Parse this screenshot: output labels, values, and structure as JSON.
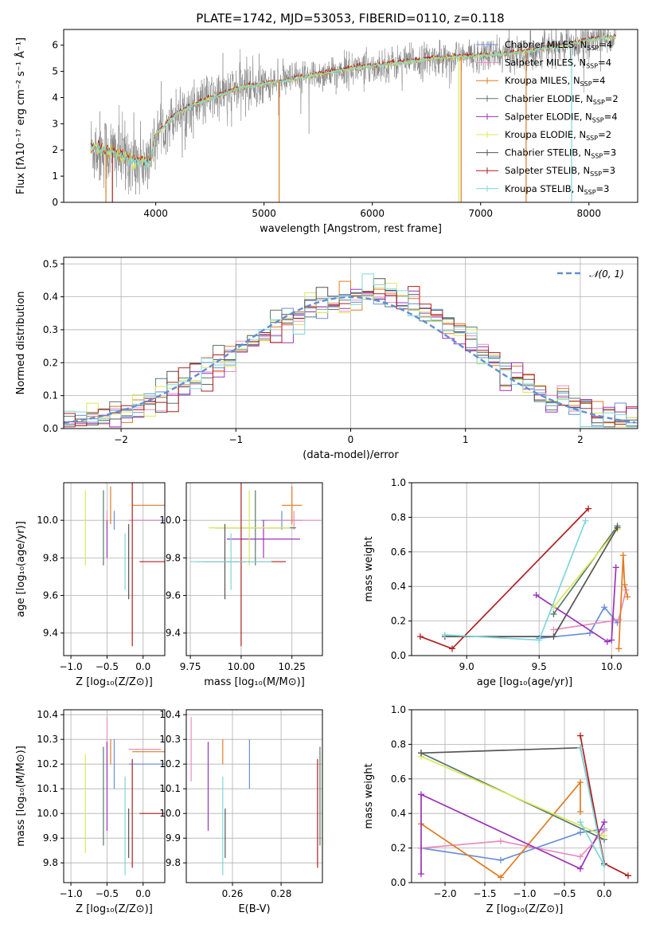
{
  "figure_title": "PLATE=1742, MJD=53053, FIBERID=0110, z=0.118",
  "colors": {
    "Chabrier MILES": "#6a8fd8",
    "Salpeter MILES": "#e98fbd",
    "Kroupa MILES": "#e07b22",
    "Chabrier ELODIE": "#5b7a6a",
    "Salpeter ELODIE": "#9b33b8",
    "Kroupa ELODIE": "#d9e85a",
    "Chabrier STELIB": "#555555",
    "Salpeter STELIB": "#b01e1e",
    "Kroupa STELIB": "#7fd6da",
    "data_spectrum": "#808080",
    "normal_curve": "#5e8fd6",
    "grid": "#b0b0b0"
  },
  "chart_data": [
    {
      "id": "spectrum",
      "type": "line",
      "title": "PLATE=1742, MJD=53053, FIBERID=0110, z=0.118",
      "xlabel": "wavelength [Angstrom, rest frame]",
      "ylabel": "Flux [fλ10⁻¹⁷ erg cm⁻² s⁻¹ Å⁻¹]",
      "xlim": [
        3150,
        8450
      ],
      "ylim": [
        0,
        6.6
      ],
      "xticks": [
        4000,
        5000,
        6000,
        7000,
        8000
      ],
      "yticks": [
        0,
        1,
        2,
        3,
        4,
        5,
        6
      ],
      "grid": false,
      "legend_position": "upper-right",
      "legend": [
        "Chabrier MILES, NSSP=4",
        "Salpeter MILES, NSSP=4",
        "Kroupa MILES, NSSP=4",
        "Chabrier ELODIE, NSSP=2",
        "Salpeter ELODIE, NSSP=4",
        "Kroupa ELODIE, NSSP=2",
        "Chabrier STELIB, NSSP=3",
        "Salpeter STELIB, NSSP=3",
        "Kroupa STELIB, NSSP=3"
      ],
      "continuum": {
        "x": [
          3400,
          3600,
          3800,
          3950,
          4000,
          4200,
          4400,
          4600,
          4800,
          5000,
          5200,
          5400,
          5600,
          5800,
          6000,
          6200,
          6400,
          6600,
          6800,
          7000,
          7200,
          7400,
          7600,
          7800,
          8000,
          8200
        ],
        "y": [
          2.1,
          1.9,
          1.6,
          1.5,
          2.6,
          3.4,
          3.8,
          4.1,
          4.4,
          4.5,
          4.65,
          4.8,
          4.95,
          5.1,
          5.2,
          5.3,
          5.4,
          5.5,
          5.55,
          5.6,
          5.65,
          5.75,
          5.9,
          6.0,
          6.2,
          6.3
        ]
      }
    },
    {
      "id": "residuals",
      "type": "histogram",
      "xlabel": "(data-model)/error",
      "ylabel": "Normed distribution",
      "xlim": [
        -2.5,
        2.5
      ],
      "ylim": [
        0,
        0.52
      ],
      "xticks": [
        -2,
        -1,
        0,
        1,
        2
      ],
      "yticks": [
        0.0,
        0.1,
        0.2,
        0.3,
        0.4,
        0.5
      ],
      "grid": true,
      "legend": [
        "𝒩(0, 1)"
      ],
      "legend_position": "upper-right",
      "normal": {
        "mean": 0,
        "sigma": 1
      }
    },
    {
      "id": "age-vs-Z",
      "type": "errorbar",
      "xlabel": "Z [log₁₀(Z/Z⊙)]",
      "ylabel": "age  [log₁₀(age/yr)]",
      "xlim": [
        -1.1,
        0.3
      ],
      "ylim": [
        9.28,
        10.2
      ],
      "xticks": [
        -1.0,
        -0.5,
        0.0
      ],
      "yticks": [
        9.4,
        9.6,
        9.8,
        10.0
      ],
      "grid": true
    },
    {
      "id": "age-vs-mass",
      "type": "errorbar",
      "xlabel": "mass [log₁₀(M/M⊙)]",
      "xlim": [
        9.73,
        10.4
      ],
      "ylim": [
        9.28,
        10.2
      ],
      "xticks": [
        9.75,
        10.0,
        10.25
      ],
      "yticks": [
        9.4,
        9.6,
        9.8,
        10.0
      ],
      "grid": true
    },
    {
      "id": "weight-vs-age",
      "type": "line",
      "xlabel": "age  [log₁₀(age/yr)]",
      "ylabel": "mass weight",
      "xlim": [
        8.62,
        10.18
      ],
      "ylim": [
        0,
        1
      ],
      "xticks": [
        9.0,
        9.5,
        10.0
      ],
      "yticks": [
        0.0,
        0.2,
        0.4,
        0.6,
        0.8,
        1.0
      ],
      "grid": true
    },
    {
      "id": "mass-vs-Z",
      "type": "errorbar",
      "xlabel": "Z [log₁₀(Z/Z⊙)]",
      "ylabel": "mass [log₁₀(M/M⊙)]",
      "xlim": [
        -1.1,
        0.3
      ],
      "ylim": [
        9.72,
        10.42
      ],
      "xticks": [
        -1.0,
        -0.5,
        0.0
      ],
      "yticks": [
        9.8,
        9.9,
        10.0,
        10.1,
        10.2,
        10.3,
        10.4
      ],
      "grid": true
    },
    {
      "id": "mass-vs-EBV",
      "type": "errorbar",
      "xlabel": "E(B-V)",
      "xlim": [
        0.241,
        0.297
      ],
      "ylim": [
        9.72,
        10.42
      ],
      "xticks": [
        0.26,
        0.28
      ],
      "yticks": [
        9.8,
        9.9,
        10.0,
        10.1,
        10.2,
        10.3,
        10.4
      ],
      "grid": true
    },
    {
      "id": "weight-vs-Z",
      "type": "line",
      "xlabel": "Z [log₁₀(Z/Z⊙)]",
      "ylabel": "mass weight",
      "xlim": [
        -2.42,
        0.42
      ],
      "ylim": [
        0,
        1
      ],
      "xticks": [
        -2.0,
        -1.5,
        -1.0,
        -0.5,
        0.0
      ],
      "yticks": [
        0.0,
        0.2,
        0.4,
        0.6,
        0.8,
        1.0
      ],
      "grid": true
    }
  ],
  "models": [
    {
      "name": "Chabrier MILES",
      "color": "#6a8fd8",
      "Z": [
        -0.4,
        -0.7,
        0.2
      ],
      "age": [
        10.0,
        0.05,
        0.05
      ],
      "mass": [
        10.2,
        0.1,
        0.1
      ],
      "ebv": 0.267,
      "w_age": [
        [
          9.5,
          0.1
        ],
        [
          9.85,
          0.13
        ],
        [
          9.95,
          0.28
        ],
        [
          10.04,
          0.19
        ]
      ],
      "w_Z": [
        [
          -2.3,
          0.2
        ],
        [
          -1.3,
          0.13
        ],
        [
          -0.3,
          0.29
        ],
        [
          0.0,
          0.31
        ]
      ]
    },
    {
      "name": "Salpeter MILES",
      "color": "#e98fbd",
      "Z": [
        -0.5,
        -0.75,
        0.3
      ],
      "age": [
        10.0,
        0.05,
        0.05
      ],
      "mass": [
        10.26,
        0.13,
        0.13
      ],
      "ebv": 0.243,
      "w_age": [
        [
          9.6,
          0.15
        ],
        [
          10.0,
          0.2
        ],
        [
          10.05,
          0.21
        ],
        [
          10.1,
          0.38
        ]
      ],
      "w_Z": [
        [
          -2.3,
          0.2
        ],
        [
          -1.3,
          0.24
        ],
        [
          -0.3,
          0.15
        ],
        [
          0.0,
          0.3
        ]
      ]
    },
    {
      "name": "Kroupa MILES",
      "color": "#e07b22",
      "Z": [
        -0.45,
        -0.75,
        0.3
      ],
      "age": [
        10.08,
        0.1,
        0.1
      ],
      "mass": [
        10.25,
        0.05,
        0.05
      ],
      "ebv": 0.256,
      "w_age": [
        [
          10.05,
          0.04
        ],
        [
          10.08,
          0.58
        ],
        [
          10.09,
          0.41
        ],
        [
          10.11,
          0.34
        ]
      ],
      "w_Z": [
        [
          -2.3,
          0.34
        ],
        [
          -1.3,
          0.03
        ],
        [
          -0.3,
          0.58
        ],
        [
          -0.3,
          0.41
        ]
      ]
    },
    {
      "name": "Chabrier ELODIE",
      "color": "#5b7a6a",
      "Z": [
        -0.55,
        -0.1,
        0.1
      ],
      "age": [
        9.96,
        0.2,
        0.2
      ],
      "mass": [
        10.07,
        0.2,
        0.2
      ],
      "ebv": 0.296,
      "w_age": [
        [
          9.6,
          0.24
        ],
        [
          10.04,
          0.75
        ]
      ],
      "w_Z": [
        [
          -2.3,
          0.75
        ],
        [
          0.0,
          0.25
        ]
      ]
    },
    {
      "name": "Salpeter ELODIE",
      "color": "#9b33b8",
      "Z": [
        -0.5,
        -0.45,
        0.45
      ],
      "age": [
        9.9,
        0.1,
        0.1
      ],
      "mass": [
        10.11,
        0.18,
        0.18
      ],
      "ebv": 0.25,
      "w_age": [
        [
          9.48,
          0.35
        ],
        [
          9.97,
          0.08
        ],
        [
          10.0,
          0.09
        ],
        [
          10.03,
          0.51
        ]
      ],
      "w_Z": [
        [
          -2.3,
          0.05
        ],
        [
          -2.3,
          0.51
        ],
        [
          -0.3,
          0.08
        ],
        [
          0.0,
          0.35
        ]
      ]
    },
    {
      "name": "Kroupa ELODIE",
      "color": "#d9e85a",
      "Z": [
        -0.8,
        -0.2,
        0.2
      ],
      "age": [
        9.96,
        0.2,
        0.2
      ],
      "mass": [
        10.04,
        0.2,
        0.2
      ],
      "ebv": 0.297,
      "w_age": [
        [
          9.6,
          0.28
        ],
        [
          10.04,
          0.73
        ]
      ],
      "w_Z": [
        [
          -2.3,
          0.73
        ],
        [
          0.0,
          0.27
        ]
      ]
    },
    {
      "name": "Chabrier STELIB",
      "color": "#555555",
      "Z": [
        -0.2,
        -0.1,
        0.1
      ],
      "age": [
        9.78,
        0.2,
        0.2
      ],
      "mass": [
        9.92,
        0.1,
        0.1
      ],
      "ebv": 0.257,
      "w_age": [
        [
          8.85,
          0.11
        ],
        [
          9.6,
          0.11
        ],
        [
          10.04,
          0.74
        ]
      ],
      "w_Z": [
        [
          -2.3,
          0.75
        ],
        [
          -0.3,
          0.78
        ],
        [
          0.0,
          0.11
        ]
      ]
    },
    {
      "name": "Salpeter STELIB",
      "color": "#b01e1e",
      "Z": [
        -0.15,
        -0.1,
        0.45
      ],
      "age": [
        9.78,
        0.45,
        0.45
      ],
      "mass": [
        10.0,
        0.22,
        0.22
      ],
      "ebv": 0.295,
      "w_age": [
        [
          8.68,
          0.11
        ],
        [
          8.9,
          0.04
        ],
        [
          9.84,
          0.85
        ]
      ],
      "w_Z": [
        [
          -0.3,
          0.85
        ],
        [
          0.0,
          0.11
        ],
        [
          0.3,
          0.04
        ]
      ]
    },
    {
      "name": "Kroupa STELIB",
      "color": "#7fd6da",
      "Z": [
        -0.25,
        -0.1,
        0.1
      ],
      "age": [
        9.78,
        0.15,
        0.15
      ],
      "mass": [
        9.95,
        0.2,
        0.2
      ],
      "ebv": 0.256,
      "w_age": [
        [
          8.85,
          0.12
        ],
        [
          9.5,
          0.09
        ],
        [
          9.82,
          0.78
        ]
      ],
      "w_Z": [
        [
          -0.3,
          0.78
        ],
        [
          0.0,
          0.1
        ],
        [
          -0.3,
          0.35
        ]
      ]
    }
  ]
}
